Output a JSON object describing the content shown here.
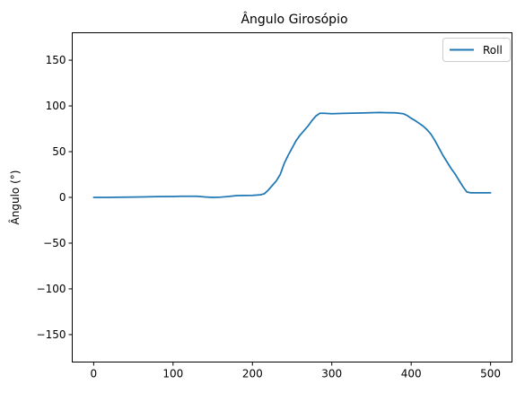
{
  "chart_data": {
    "type": "line",
    "title": "Ângulo Girosópio",
    "xlabel": "",
    "ylabel": "Ângulo (°)",
    "xlim": [
      -27,
      527
    ],
    "ylim": [
      -180,
      180
    ],
    "xticks": [
      0,
      100,
      200,
      300,
      400,
      500
    ],
    "yticks": [
      -150,
      -100,
      -50,
      0,
      50,
      100,
      150
    ],
    "grid": false,
    "legend_position": "top-right",
    "series": [
      {
        "name": "Roll",
        "color": "#1f77b4",
        "x": [
          0,
          20,
          40,
          60,
          80,
          100,
          110,
          130,
          140,
          150,
          160,
          170,
          180,
          200,
          210,
          215,
          220,
          225,
          230,
          235,
          240,
          245,
          250,
          255,
          260,
          265,
          270,
          275,
          280,
          285,
          290,
          300,
          320,
          340,
          360,
          370,
          380,
          390,
          395,
          400,
          405,
          410,
          415,
          420,
          425,
          430,
          435,
          440,
          445,
          450,
          455,
          460,
          465,
          470,
          475,
          480,
          500
        ],
        "y": [
          0,
          0,
          0.3,
          0.5,
          0.8,
          1,
          1.2,
          1.2,
          0.5,
          0,
          0.3,
          1,
          2,
          2.2,
          2.8,
          4,
          8,
          13,
          18,
          25,
          37,
          46,
          54,
          62,
          68,
          73,
          78,
          84,
          89,
          92,
          92,
          91.5,
          92,
          92.3,
          92.8,
          92.6,
          92.5,
          91.5,
          89.5,
          86.5,
          84,
          81,
          78,
          74,
          69,
          62,
          54,
          46,
          39,
          32,
          26,
          19,
          12,
          6,
          5,
          5,
          5
        ]
      }
    ]
  }
}
